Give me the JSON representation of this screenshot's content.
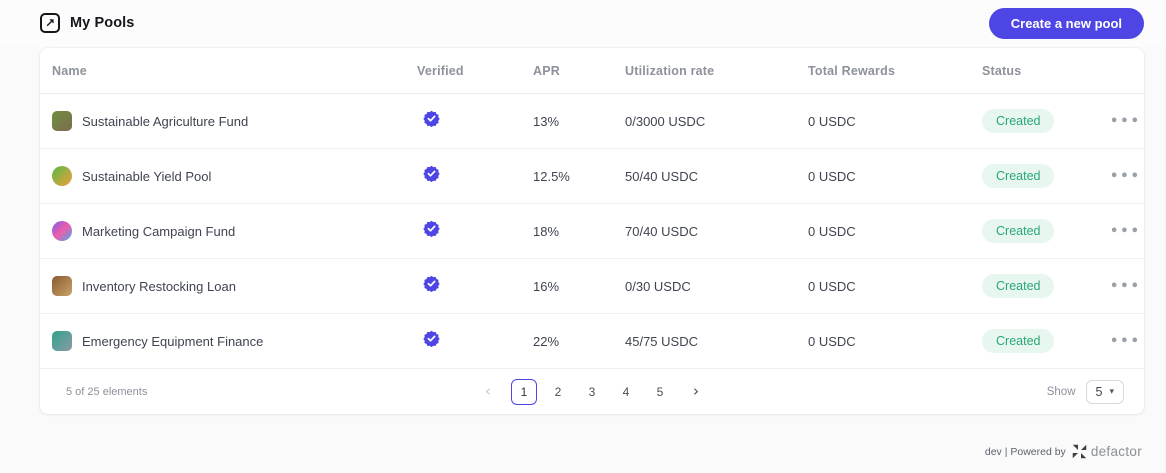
{
  "colors": {
    "accent": "#4e46e4",
    "status_bg": "#e7f7ef",
    "status_text": "#2aa775"
  },
  "header": {
    "title": "My Pools",
    "title_icon": "arrow-up-right-icon",
    "title_icon_glyph": "↗",
    "create_button_label": "Create a new pool"
  },
  "table": {
    "columns": [
      "Name",
      "Verified",
      "APR",
      "Utilization rate",
      "Total Rewards",
      "Status"
    ],
    "rows": [
      {
        "name": "Sustainable Agriculture Fund",
        "icon": "tractor-icon",
        "icon_shape": "square",
        "icon_colors": [
          "#6f8f3f",
          "#7d6b52"
        ],
        "verified": true,
        "apr": "13%",
        "utilization": "0/3000 USDC",
        "total_rewards": "0 USDC",
        "status": "Created"
      },
      {
        "name": "Sustainable Yield Pool",
        "icon": "recycle-globe-icon",
        "icon_shape": "circle",
        "icon_colors": [
          "#58b947",
          "#f0a03c"
        ],
        "verified": true,
        "apr": "12.5%",
        "utilization": "50/40 USDC",
        "total_rewards": "0 USDC",
        "status": "Created"
      },
      {
        "name": "Marketing Campaign Fund",
        "icon": "pie-chart-icon",
        "icon_shape": "circle",
        "icon_colors": [
          "#7b5cf0",
          "#ef5da8",
          "#4aa7f0"
        ],
        "verified": true,
        "apr": "18%",
        "utilization": "70/40 USDC",
        "total_rewards": "0 USDC",
        "status": "Created"
      },
      {
        "name": "Inventory Restocking Loan",
        "icon": "stacked-boxes-icon",
        "icon_shape": "square",
        "icon_colors": [
          "#8a5a2e",
          "#c9a46a"
        ],
        "verified": true,
        "apr": "16%",
        "utilization": "0/30 USDC",
        "total_rewards": "0 USDC",
        "status": "Created"
      },
      {
        "name": "Emergency Equipment Finance",
        "icon": "medical-monitor-icon",
        "icon_shape": "square",
        "icon_colors": [
          "#2fa38c",
          "#8d99a6"
        ],
        "verified": true,
        "apr": "22%",
        "utilization": "45/75 USDC",
        "total_rewards": "0 USDC",
        "status": "Created"
      }
    ],
    "verified_icon": "verified-check-badge-icon",
    "row_menu_icon": "ellipsis-icon",
    "row_menu_glyph": "•••"
  },
  "pagination": {
    "summary": "5 of 25 elements",
    "prev_icon": "chevron-left-icon",
    "prev_glyph": "‹",
    "next_icon": "chevron-right-icon",
    "next_glyph": "›",
    "pages": [
      "1",
      "2",
      "3",
      "4",
      "5"
    ],
    "current_page": "1",
    "show_label": "Show",
    "page_size": "5",
    "dropdown_caret_glyph": "▾"
  },
  "page_footer": {
    "powered_text": "dev | Powered by",
    "brand": "defactor",
    "logo": "defactor-logo"
  }
}
